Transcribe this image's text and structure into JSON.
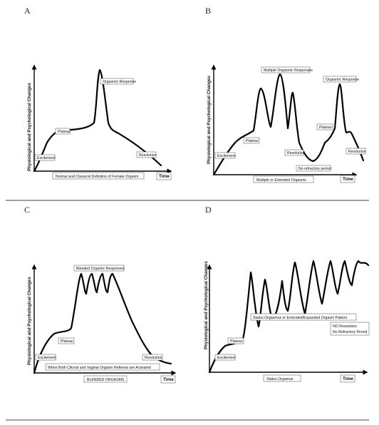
{
  "panels": {
    "A": {
      "letter": "A",
      "ylabel": "Physiological and Psychological Changes",
      "xlabel": "Normal and Classical Definition of Female Orgasm",
      "time": "Time",
      "labels": {
        "excitement": "Excitement",
        "plateau": "Plateau",
        "orgasmic": "Orgasmic Response",
        "resolution": "Resolution"
      }
    },
    "B": {
      "letter": "B",
      "ylabel": "Physiological and Psychological Changes",
      "xlabel": "Multiple or Extended Orgasms",
      "time": "Time",
      "labels": {
        "excitement": "Excitement",
        "plateau1": "Plateau",
        "multiple": "Multiple Orgasmic Responses",
        "resolution1": "Resolution",
        "no_refractory": "No refractory period",
        "plateau2": "Plateau",
        "orgasmic": "Orgasmic Response",
        "resolution2": "Resolution"
      }
    },
    "C": {
      "letter": "C",
      "ylabel": "Physiological and Psychological Changes",
      "xlabel": "BLENDED ORGASMS",
      "time": "Time",
      "labels": {
        "excitement": "Excitement",
        "plateau": "Plateau",
        "blended": "Blended Orgamic Responses",
        "resolution": "Resolution",
        "reflexes": "When Both Clitoral and Vaginal Orgasm Reflexes are Activated"
      }
    },
    "D": {
      "letter": "D",
      "ylabel": "Physiological and Psychological Changes",
      "xlabel": "Status Orgamus",
      "time": "Time",
      "labels": {
        "excitement": "Excitement",
        "plateau": "Plateau",
        "status": "Status Orgasmus or Extended/Expanded Orgasm Pattern",
        "no_resolution": "NO Resolution",
        "no_refractory": "No Refractory Period"
      }
    }
  }
}
